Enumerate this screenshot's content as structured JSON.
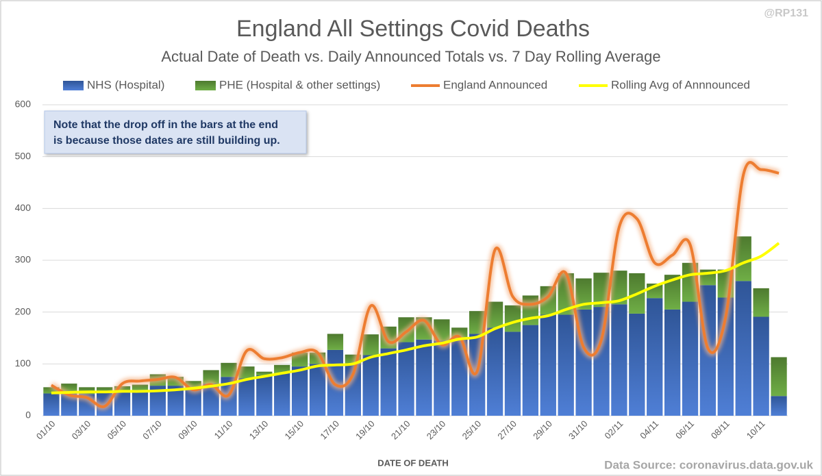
{
  "chart_data": {
    "type": "bar",
    "title": "England All Settings Covid Deaths",
    "subtitle": "Actual Date of Death vs. Daily Announced Totals vs. 7 Day Rolling Average",
    "watermark": "@RP131",
    "xlabel": "DATE OF DEATH",
    "source": "Data Source: coronavirus.data.gov.uk",
    "annotation": [
      "Note that the drop off in the bars at the end",
      "is because those dates are still building up."
    ],
    "categories": [
      "01/10",
      null,
      "03/10",
      null,
      "05/10",
      null,
      "07/10",
      null,
      "09/10",
      null,
      "11/10",
      null,
      "13/10",
      null,
      "15/10",
      null,
      "17/10",
      null,
      "19/10",
      null,
      "21/10",
      null,
      "23/10",
      null,
      "25/10",
      null,
      "27/10",
      null,
      "29/10",
      null,
      "31/10",
      null,
      "02/11",
      null,
      "04/11",
      null,
      "06/11",
      null,
      "08/11",
      null,
      "10/11",
      null
    ],
    "series": [
      {
        "name": "NHS (Hospital)",
        "type": "bar",
        "color": "#4472c4",
        "values": [
          43,
          45,
          42,
          44,
          48,
          50,
          58,
          58,
          55,
          62,
          75,
          72,
          78,
          82,
          95,
          100,
          127,
          100,
          117,
          130,
          142,
          147,
          145,
          148,
          158,
          170,
          162,
          175,
          195,
          195,
          205,
          210,
          215,
          197,
          227,
          205,
          220,
          252,
          228,
          260,
          191,
          38
        ]
      },
      {
        "name": "PHE (Hospital & other settings)",
        "type": "bar",
        "color": "#70ad47",
        "values": [
          12,
          17,
          13,
          11,
          9,
          10,
          22,
          17,
          12,
          26,
          27,
          23,
          7,
          16,
          27,
          22,
          31,
          18,
          40,
          42,
          48,
          43,
          41,
          22,
          44,
          50,
          51,
          57,
          55,
          80,
          60,
          66,
          65,
          78,
          28,
          67,
          75,
          30,
          54,
          86,
          55,
          75
        ]
      },
      {
        "name": "England Announced",
        "type": "line",
        "color": "#ed7d31",
        "values": [
          59,
          40,
          35,
          18,
          62,
          67,
          70,
          74,
          50,
          60,
          40,
          125,
          110,
          112,
          122,
          122,
          60,
          80,
          212,
          143,
          162,
          184,
          137,
          152,
          86,
          320,
          230,
          215,
          230,
          275,
          132,
          147,
          364,
          380,
          295,
          310,
          330,
          130,
          190,
          465,
          475,
          468
        ]
      },
      {
        "name": "Rolling Avg of Annnounced",
        "type": "line",
        "color": "#ffff00",
        "values": [
          44,
          45,
          46,
          46,
          47,
          47,
          48,
          50,
          53,
          57,
          62,
          70,
          76,
          82,
          88,
          96,
          98,
          100,
          113,
          120,
          127,
          135,
          140,
          148,
          152,
          168,
          180,
          188,
          193,
          205,
          215,
          218,
          222,
          235,
          250,
          262,
          272,
          275,
          280,
          295,
          308,
          333
        ]
      }
    ],
    "ylim": [
      0,
      600
    ],
    "yticks": [
      0,
      100,
      200,
      300,
      400,
      500,
      600
    ],
    "grid": true
  }
}
